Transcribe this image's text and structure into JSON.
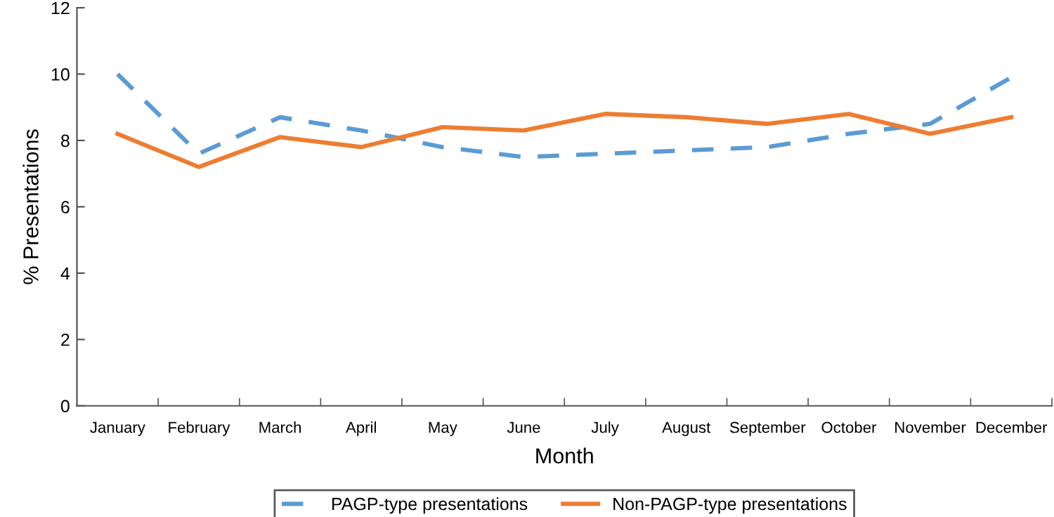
{
  "chart_data": {
    "type": "line",
    "xlabel": "Month",
    "ylabel": "% Presentations",
    "categories": [
      "January",
      "February",
      "March",
      "April",
      "May",
      "June",
      "July",
      "August",
      "September",
      "October",
      "November",
      "December"
    ],
    "series": [
      {
        "name": "PAGP-type presentations",
        "color": "#5b9bd5",
        "line_style": "dashed",
        "values": [
          10.0,
          7.6,
          8.7,
          8.3,
          7.8,
          7.5,
          7.6,
          7.7,
          7.8,
          8.2,
          8.5,
          9.9
        ]
      },
      {
        "name": "Non-PAGP-type presentations",
        "color": "#ed7d31",
        "line_style": "solid",
        "values": [
          8.2,
          7.2,
          8.1,
          7.8,
          8.4,
          8.3,
          8.8,
          8.7,
          8.5,
          8.8,
          8.2,
          8.7
        ]
      }
    ],
    "ylim": [
      0,
      12
    ],
    "yticks": [
      0,
      2,
      4,
      6,
      8,
      10,
      12
    ],
    "grid": false,
    "legend": "bottom",
    "marker": "none"
  }
}
